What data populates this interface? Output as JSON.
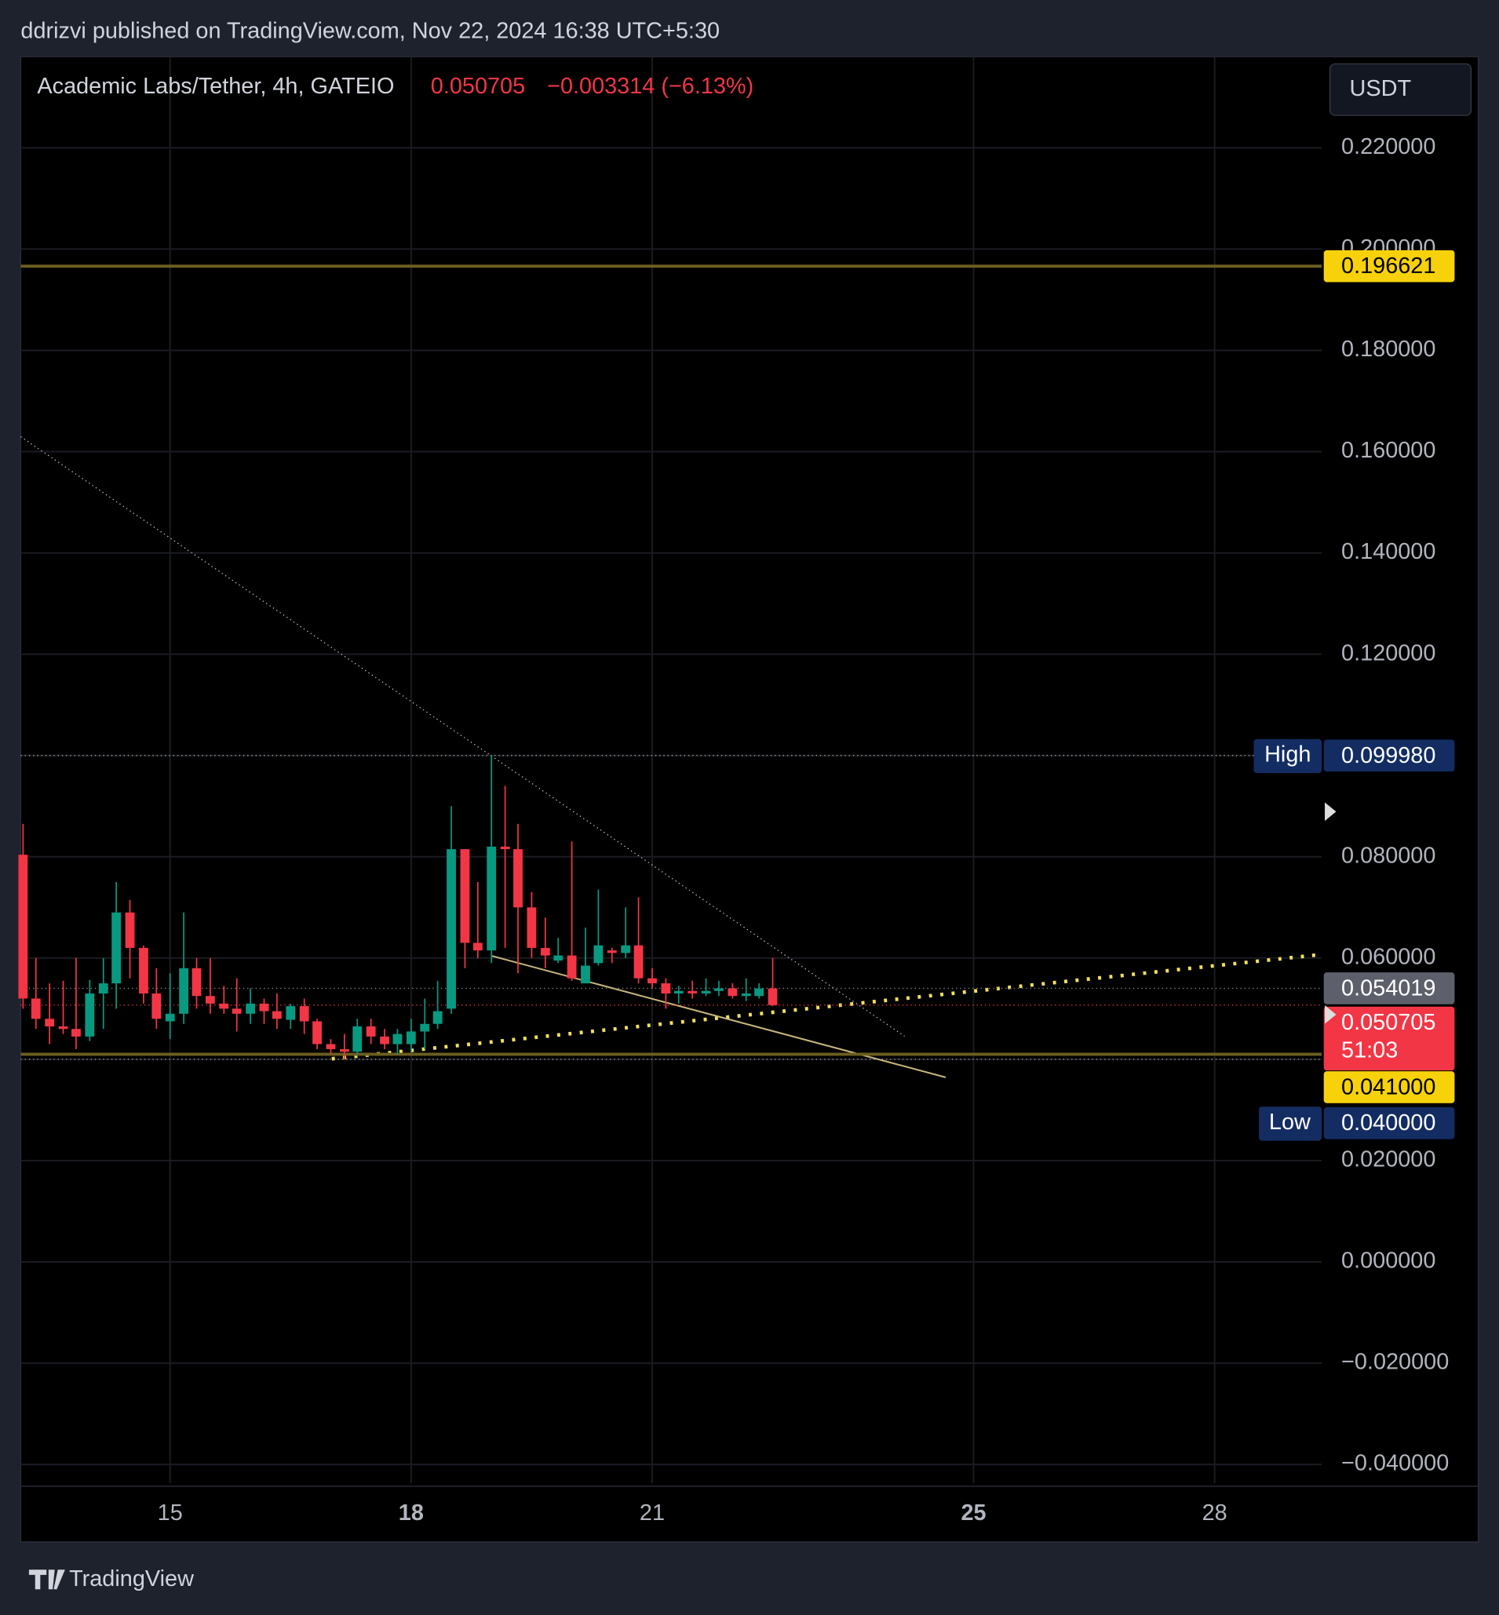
{
  "chart_data": {
    "type": "candlestick",
    "published": "ddrizvi published on TradingView.com, Nov 22, 2024 16:38 UTC+5:30",
    "title": "Academic Labs/Tether, 4h, GATEIO",
    "last": 0.050705,
    "change": "−0.003314 (−6.13%)",
    "currency": "USDT",
    "countdown": "51:03",
    "brand": "TradingView",
    "up_color": "#089981",
    "down_color": "#f23645",
    "grid": true,
    "x": [
      13.17,
      13.33,
      13.5,
      13.67,
      13.83,
      14,
      14.17,
      14.33,
      14.5,
      14.67,
      14.83,
      15,
      15.17,
      15.33,
      15.5,
      15.67,
      15.83,
      16,
      16.17,
      16.33,
      16.5,
      16.67,
      16.83,
      17,
      17.17,
      17.33,
      17.5,
      17.67,
      17.83,
      18,
      18.17,
      18.33,
      18.5,
      18.67,
      18.83,
      19,
      19.17,
      19.33,
      19.5,
      19.67,
      19.83,
      20,
      20.17,
      20.33,
      20.5,
      20.67,
      20.83,
      21,
      21.17,
      21.33,
      21.5,
      21.67,
      21.83,
      22,
      22.17,
      22.33,
      22.5
    ],
    "open": [
      0.0804,
      0.052,
      0.048,
      0.0465,
      0.046,
      0.0445,
      0.053,
      0.055,
      0.069,
      0.062,
      0.053,
      0.0475,
      0.049,
      0.058,
      0.0525,
      0.051,
      0.05,
      0.049,
      0.051,
      0.0495,
      0.0478,
      0.0505,
      0.0475,
      0.043,
      0.042,
      0.0415,
      0.0465,
      0.0445,
      0.043,
      0.043,
      0.0455,
      0.047,
      0.05,
      0.0815,
      0.063,
      0.0615,
      0.082,
      0.0815,
      0.07,
      0.062,
      0.0595,
      0.0605,
      0.055,
      0.059,
      0.0615,
      0.061,
      0.0625,
      0.056,
      0.055,
      0.053,
      0.0535,
      0.053,
      0.0535,
      0.054,
      0.0525,
      0.0525,
      0.054
    ],
    "high": [
      0.0865,
      0.06,
      0.055,
      0.0555,
      0.06,
      0.0557,
      0.06,
      0.075,
      0.0715,
      0.0625,
      0.058,
      0.057,
      0.069,
      0.06,
      0.06,
      0.0545,
      0.056,
      0.054,
      0.052,
      0.053,
      0.051,
      0.052,
      0.048,
      0.044,
      0.045,
      0.048,
      0.048,
      0.046,
      0.046,
      0.048,
      0.052,
      0.0555,
      0.09,
      0.0815,
      0.075,
      0.09998,
      0.094,
      0.0865,
      0.073,
      0.068,
      0.064,
      0.083,
      0.066,
      0.0735,
      0.062,
      0.07,
      0.072,
      0.058,
      0.056,
      0.0545,
      0.0555,
      0.056,
      0.0555,
      0.055,
      0.056,
      0.055,
      0.06
    ],
    "low": [
      0.05,
      0.046,
      0.043,
      0.045,
      0.042,
      0.0436,
      0.046,
      0.05,
      0.056,
      0.051,
      0.046,
      0.044,
      0.047,
      0.05,
      0.049,
      0.049,
      0.0455,
      0.047,
      0.047,
      0.046,
      0.046,
      0.045,
      0.042,
      0.041,
      0.04,
      0.041,
      0.043,
      0.042,
      0.041,
      0.0415,
      0.042,
      0.046,
      0.049,
      0.058,
      0.06,
      0.059,
      0.062,
      0.057,
      0.06,
      0.058,
      0.059,
      0.0555,
      0.055,
      0.0585,
      0.059,
      0.06,
      0.055,
      0.054,
      0.05,
      0.051,
      0.052,
      0.0525,
      0.0525,
      0.052,
      0.0515,
      0.052,
      0.0505
    ],
    "close": [
      0.052,
      0.048,
      0.0465,
      0.046,
      0.0445,
      0.053,
      0.055,
      0.069,
      0.062,
      0.053,
      0.048,
      0.049,
      0.058,
      0.0525,
      0.051,
      0.05,
      0.049,
      0.051,
      0.0495,
      0.048,
      0.0505,
      0.0475,
      0.043,
      0.042,
      0.0415,
      0.0465,
      0.0445,
      0.043,
      0.045,
      0.0455,
      0.047,
      0.0495,
      0.0815,
      0.063,
      0.0615,
      0.082,
      0.0815,
      0.07,
      0.062,
      0.0605,
      0.0605,
      0.056,
      0.0585,
      0.0625,
      0.061,
      0.0625,
      0.056,
      0.055,
      0.053,
      0.0535,
      0.053,
      0.0535,
      0.054,
      0.0525,
      0.053,
      0.054,
      0.050705
    ],
    "xlim": [
      13.141,
      29.333
    ],
    "xticks": [
      15,
      18,
      21,
      25,
      28
    ],
    "ylim": [
      -0.0437,
      0.238
    ],
    "yticks": [
      {
        "value": 0.22,
        "label": "0.220000"
      },
      {
        "value": 0.2,
        "label": "0.200000"
      },
      {
        "value": 0.18,
        "label": "0.180000"
      },
      {
        "value": 0.16,
        "label": "0.160000"
      },
      {
        "value": 0.14,
        "label": "0.140000"
      },
      {
        "value": 0.12,
        "label": "0.120000"
      },
      {
        "value": 0.1,
        "label": "0.100000"
      },
      {
        "value": 0.08,
        "label": "0.080000"
      },
      {
        "value": 0.06,
        "label": "0.060000"
      },
      {
        "value": 0.04,
        "label": "0.040000"
      },
      {
        "value": 0.02,
        "label": "0.020000"
      },
      {
        "value": 0,
        "label": "0.000000"
      },
      {
        "value": -0.02,
        "label": "−0.020000"
      },
      {
        "value": -0.04,
        "label": "−0.040000"
      }
    ],
    "levels": [
      0.196621,
      {
        "value": 0.041,
        "label": "0.041000"
      }
    ],
    "prev_close": 0.054019,
    "high_label": "High",
    "high_price": {
      "value": 0.09998,
      "label": "0.099980"
    },
    "low_label": "Low",
    "low_price": {
      "value": 0.04,
      "label": "0.040000"
    }
  }
}
